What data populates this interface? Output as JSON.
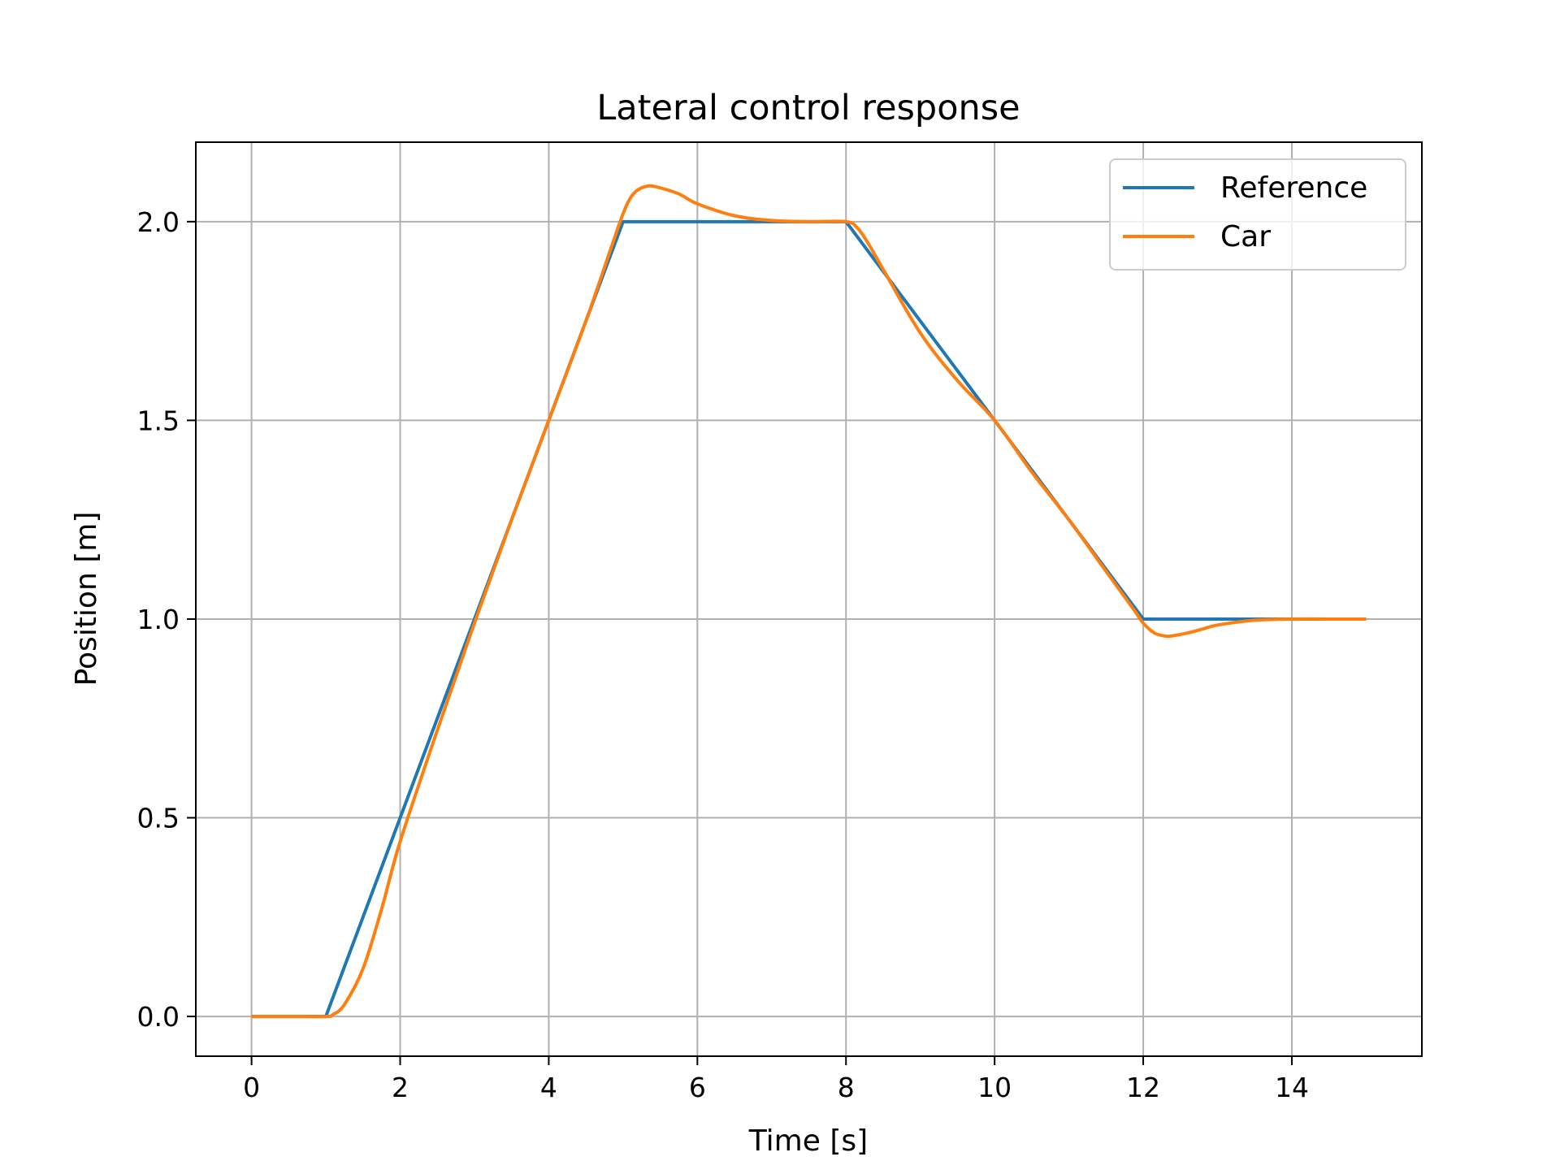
{
  "chart_data": {
    "type": "line",
    "title": "Lateral control response",
    "xlabel": "Time [s]",
    "ylabel": "Position [m]",
    "xlim": [
      -0.75,
      15.75
    ],
    "ylim": [
      -0.1,
      2.2
    ],
    "xticks": [
      0,
      2,
      4,
      6,
      8,
      10,
      12,
      14
    ],
    "xtick_labels": [
      "0",
      "2",
      "4",
      "6",
      "8",
      "10",
      "12",
      "14"
    ],
    "yticks": [
      0.0,
      0.5,
      1.0,
      1.5,
      2.0
    ],
    "ytick_labels": [
      "0.0",
      "0.5",
      "1.0",
      "1.5",
      "2.0"
    ],
    "grid": true,
    "legend_position": "top-right",
    "series": [
      {
        "name": "Reference",
        "color": "#1f77b4",
        "x": [
          0,
          1,
          5,
          8,
          12,
          15
        ],
        "y": [
          0.0,
          0.0,
          2.0,
          2.0,
          1.0,
          1.0
        ]
      },
      {
        "name": "Car",
        "color": "#ff7f0e",
        "x": [
          0,
          0.5,
          1.0,
          1.1,
          1.25,
          1.5,
          1.75,
          2.0,
          2.5,
          3.0,
          3.5,
          4.0,
          4.5,
          4.85,
          5.0,
          5.1,
          5.2,
          5.35,
          5.5,
          5.75,
          6.0,
          6.5,
          7.0,
          7.5,
          8.0,
          8.15,
          8.3,
          8.5,
          9.0,
          9.5,
          10.0,
          10.5,
          11.0,
          11.5,
          11.85,
          12.0,
          12.15,
          12.3,
          12.4,
          12.6,
          12.8,
          13.0,
          13.5,
          14.0,
          14.5,
          15.0
        ],
        "y": [
          0.0,
          0.0,
          0.0,
          0.005,
          0.03,
          0.12,
          0.27,
          0.44,
          0.72,
          0.99,
          1.25,
          1.5,
          1.75,
          1.94,
          2.02,
          2.06,
          2.08,
          2.09,
          2.085,
          2.07,
          2.045,
          2.015,
          2.003,
          2.0,
          2.0,
          1.985,
          1.945,
          1.88,
          1.72,
          1.6,
          1.5,
          1.37,
          1.25,
          1.12,
          1.03,
          0.99,
          0.965,
          0.957,
          0.958,
          0.965,
          0.975,
          0.985,
          0.997,
          1.0,
          1.0,
          1.0
        ]
      }
    ]
  }
}
